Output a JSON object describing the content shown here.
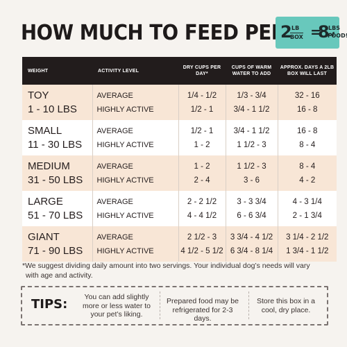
{
  "title": "HOW MUCH TO FEED PER DAY",
  "badge": {
    "left_number": "2",
    "left_unit": "LB",
    "left_word": "BOX",
    "equals": "=",
    "right_number": "8",
    "right_unit": "LBS of",
    "right_word": "FOOD!",
    "color": "#68c8bc"
  },
  "table": {
    "headers": {
      "weight": "WEIGHT",
      "activity": "ACTIVITY LEVEL",
      "dry_cups": "DRY CUPS PER DAY*",
      "water": "CUPS OF WARM WATER TO ADD",
      "days": "APPROX. DAYS A 2LB BOX WILL LAST"
    },
    "rows": [
      {
        "size": "TOY",
        "range": "1 - 10 LBS",
        "activity": [
          "AVERAGE",
          "HIGHLY ACTIVE"
        ],
        "dry": [
          "1/4 - 1/2",
          "1/2 - 1"
        ],
        "water": [
          "1/3 - 3/4",
          "3/4 - 1 1/2"
        ],
        "days": [
          "32 - 16",
          "16 - 8"
        ]
      },
      {
        "size": "SMALL",
        "range": "11 - 30 LBS",
        "activity": [
          "AVERAGE",
          "HIGHLY ACTIVE"
        ],
        "dry": [
          "1/2 - 1",
          "1 - 2"
        ],
        "water": [
          "3/4 - 1 1/2",
          "1 1/2 - 3"
        ],
        "days": [
          "16 - 8",
          "8 - 4"
        ]
      },
      {
        "size": "MEDIUM",
        "range": "31 - 50 LBS",
        "activity": [
          "AVERAGE",
          "HIGHLY ACTIVE"
        ],
        "dry": [
          "1 - 2",
          "2 - 4"
        ],
        "water": [
          "1 1/2 - 3",
          "3 - 6"
        ],
        "days": [
          "8 - 4",
          "4 - 2"
        ]
      },
      {
        "size": "LARGE",
        "range": "51 - 70 LBS",
        "activity": [
          "AVERAGE",
          "HIGHLY ACTIVE"
        ],
        "dry": [
          "2 - 2 1/2",
          "4 - 4 1/2"
        ],
        "water": [
          "3 - 3 3/4",
          "6 - 6 3/4"
        ],
        "days": [
          "4 - 3 1/4",
          "2 - 1 3/4"
        ]
      },
      {
        "size": "GIANT",
        "range": "71 - 90 LBS",
        "activity": [
          "AVERAGE",
          "HIGHLY ACTIVE"
        ],
        "dry": [
          "2 1/2 - 3",
          "4 1/2 - 5 1/2"
        ],
        "water": [
          "3 3/4 - 4 1/2",
          "6 3/4 - 8 1/4"
        ],
        "days": [
          "3 1/4 - 2 1/2",
          "1 3/4 - 1 1/2"
        ]
      }
    ]
  },
  "footnote": {
    "line1": "*We suggest dividing daily amount into two servings. Your individual dog’s needs will vary",
    "line2": "with age and activity."
  },
  "tips": {
    "label": "TIPS:",
    "items": [
      "You can add slightly more or less water to your pet’s liking.",
      "Prepared food may be refrigerated for 2-3 days.",
      "Store this box in a cool, dry place."
    ]
  }
}
